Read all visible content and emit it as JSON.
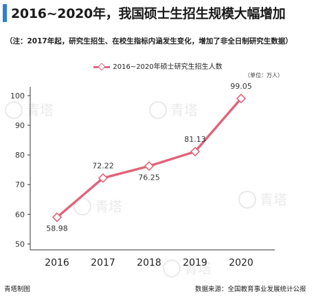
{
  "title": "2016~2020年，我国硕士生招生规模大幅增加",
  "subtitle": "（注：2017年起，研究生招生、在校生指标内涵发生变化，增加了非全日制研究生数据）",
  "unit_label": "（单位：万人）",
  "footer": {
    "left": "青塔制图",
    "right": "数据来源：全国教育事业发展统计公报"
  },
  "watermark_text": "青塔",
  "colors": {
    "accent_bar": "#2f7fd3",
    "line": "#e0647a",
    "axis": "#333333"
  },
  "chart_data": {
    "type": "line",
    "categories": [
      "2016",
      "2017",
      "2018",
      "2019",
      "2020"
    ],
    "series": [
      {
        "name": "2016~2020年硕士研究生招生人数",
        "values": [
          58.98,
          72.22,
          76.25,
          81.13,
          99.05
        ]
      }
    ],
    "value_labels": [
      "58.98",
      "72.22",
      "76.25",
      "81.13",
      "99.05"
    ],
    "y_ticks": [
      50,
      60,
      70,
      80,
      90,
      100
    ],
    "ylim": [
      48,
      103
    ],
    "grid": false,
    "legend_position": "top-center"
  }
}
